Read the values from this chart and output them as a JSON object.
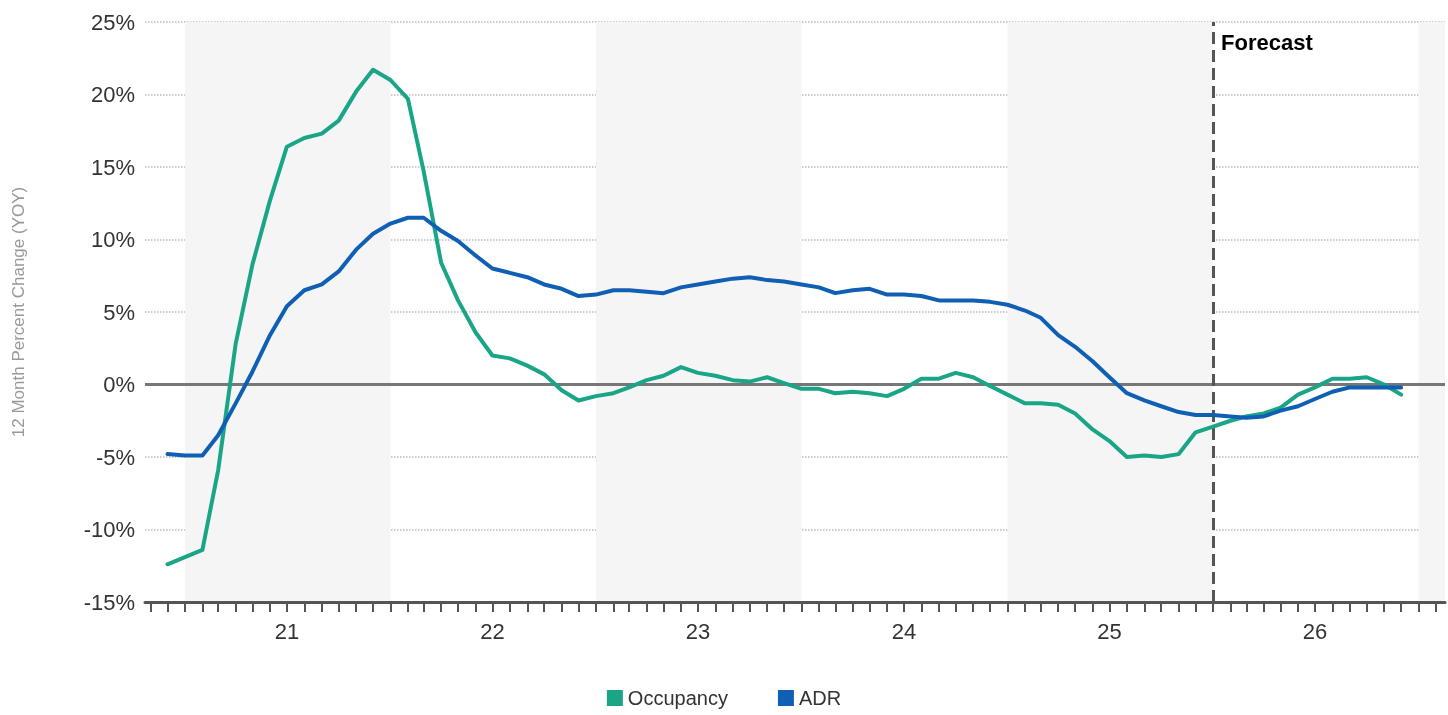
{
  "chart_data": {
    "type": "line",
    "ylabel": "12 Month Percent Change (YOY)",
    "x": [
      "2020-12",
      "2021-01",
      "2021-02",
      "2021-03",
      "2021-04",
      "2021-05",
      "2021-06",
      "2021-07",
      "2021-08",
      "2021-09",
      "2021-10",
      "2021-11",
      "2021-12",
      "2022-01",
      "2022-02",
      "2022-03",
      "2022-04",
      "2022-05",
      "2022-06",
      "2022-07",
      "2022-08",
      "2022-09",
      "2022-10",
      "2022-11",
      "2022-12",
      "2023-01",
      "2023-02",
      "2023-03",
      "2023-04",
      "2023-05",
      "2023-06",
      "2023-07",
      "2023-08",
      "2023-09",
      "2023-10",
      "2023-11",
      "2023-12",
      "2024-01",
      "2024-02",
      "2024-03",
      "2024-04",
      "2024-05",
      "2024-06",
      "2024-07",
      "2024-08",
      "2024-09",
      "2024-10",
      "2024-11",
      "2024-12",
      "2025-01",
      "2025-02",
      "2025-03",
      "2025-04",
      "2025-05",
      "2025-06",
      "2025-07",
      "2025-08",
      "2025-09",
      "2025-10",
      "2025-11",
      "2025-12",
      "2026-01",
      "2026-02",
      "2026-03",
      "2026-04",
      "2026-05",
      "2026-06",
      "2026-07",
      "2026-08",
      "2026-09",
      "2026-10",
      "2026-11",
      "2026-12"
    ],
    "series": [
      {
        "name": "Occupancy",
        "color": "#1aa587",
        "values": [
          -12.4,
          -11.9,
          -11.4,
          -5.9,
          2.8,
          8.3,
          12.7,
          16.4,
          17.0,
          17.3,
          18.2,
          20.2,
          21.7,
          21.0,
          19.7,
          14.7,
          8.4,
          5.8,
          3.6,
          2.0,
          1.8,
          1.3,
          0.7,
          -0.4,
          -1.1,
          -0.8,
          -0.6,
          -0.2,
          0.3,
          0.6,
          1.2,
          0.8,
          0.6,
          0.3,
          0.2,
          0.5,
          0.1,
          -0.3,
          -0.3,
          -0.6,
          -0.5,
          -0.6,
          -0.8,
          -0.3,
          0.4,
          0.4,
          0.8,
          0.5,
          -0.1,
          -0.7,
          -1.3,
          -1.3,
          -1.4,
          -2.0,
          -3.1,
          -3.9,
          -5.0,
          -4.9,
          -5.0,
          -4.8,
          -3.3,
          -2.9,
          -2.5,
          -2.2,
          -2.0,
          -1.6,
          -0.7,
          -0.2,
          0.4,
          0.4,
          0.5,
          0.0,
          -0.7
        ]
      },
      {
        "name": "ADR",
        "color": "#0f5fb5",
        "values": [
          -4.8,
          -4.9,
          -4.9,
          -3.5,
          -1.3,
          0.9,
          3.4,
          5.4,
          6.5,
          6.9,
          7.8,
          9.3,
          10.4,
          11.1,
          11.5,
          11.5,
          10.6,
          9.9,
          8.9,
          8.0,
          7.7,
          7.4,
          6.9,
          6.6,
          6.1,
          6.2,
          6.5,
          6.5,
          6.4,
          6.3,
          6.7,
          6.9,
          7.1,
          7.3,
          7.4,
          7.2,
          7.1,
          6.9,
          6.7,
          6.3,
          6.5,
          6.6,
          6.2,
          6.2,
          6.1,
          5.8,
          5.8,
          5.8,
          5.7,
          5.5,
          5.1,
          4.6,
          3.4,
          2.6,
          1.6,
          0.5,
          -0.6,
          -1.1,
          -1.5,
          -1.9,
          -2.1,
          -2.1,
          -2.2,
          -2.3,
          -2.2,
          -1.8,
          -1.5,
          -1.0,
          -0.5,
          -0.2,
          -0.2,
          -0.2,
          -0.2
        ]
      }
    ],
    "xlim": [
      "2020-10-22",
      "2027-02-17"
    ],
    "xticks": [
      {
        "value": "2020-11",
        "label": null
      },
      {
        "value": "2020-12",
        "label": null
      },
      {
        "value": "2021-01",
        "label": null
      },
      {
        "value": "2021-02",
        "label": null
      },
      {
        "value": "2021-03",
        "label": null
      },
      {
        "value": "2021-04",
        "label": null
      },
      {
        "value": "2021-05",
        "label": null
      },
      {
        "value": "2021-06",
        "label": null
      },
      {
        "value": "2021-07",
        "label": "21"
      },
      {
        "value": "2021-08",
        "label": null
      },
      {
        "value": "2021-09",
        "label": null
      },
      {
        "value": "2021-10",
        "label": null
      },
      {
        "value": "2021-11",
        "label": null
      },
      {
        "value": "2021-12",
        "label": null
      },
      {
        "value": "2022-01",
        "label": null
      },
      {
        "value": "2022-02",
        "label": null
      },
      {
        "value": "2022-03",
        "label": null
      },
      {
        "value": "2022-04",
        "label": null
      },
      {
        "value": "2022-05",
        "label": null
      },
      {
        "value": "2022-06",
        "label": null
      },
      {
        "value": "2022-07",
        "label": "22"
      },
      {
        "value": "2022-08",
        "label": null
      },
      {
        "value": "2022-09",
        "label": null
      },
      {
        "value": "2022-10",
        "label": null
      },
      {
        "value": "2022-11",
        "label": null
      },
      {
        "value": "2022-12",
        "label": null
      },
      {
        "value": "2023-01",
        "label": null
      },
      {
        "value": "2023-02",
        "label": null
      },
      {
        "value": "2023-03",
        "label": null
      },
      {
        "value": "2023-04",
        "label": null
      },
      {
        "value": "2023-05",
        "label": null
      },
      {
        "value": "2023-06",
        "label": null
      },
      {
        "value": "2023-07",
        "label": "23"
      },
      {
        "value": "2023-08",
        "label": null
      },
      {
        "value": "2023-09",
        "label": null
      },
      {
        "value": "2023-10",
        "label": null
      },
      {
        "value": "2023-11",
        "label": null
      },
      {
        "value": "2023-12",
        "label": null
      },
      {
        "value": "2024-01",
        "label": null
      },
      {
        "value": "2024-02",
        "label": null
      },
      {
        "value": "2024-03",
        "label": null
      },
      {
        "value": "2024-04",
        "label": null
      },
      {
        "value": "2024-05",
        "label": null
      },
      {
        "value": "2024-06",
        "label": null
      },
      {
        "value": "2024-07",
        "label": "24"
      },
      {
        "value": "2024-08",
        "label": null
      },
      {
        "value": "2024-09",
        "label": null
      },
      {
        "value": "2024-10",
        "label": null
      },
      {
        "value": "2024-11",
        "label": null
      },
      {
        "value": "2024-12",
        "label": null
      },
      {
        "value": "2025-01",
        "label": null
      },
      {
        "value": "2025-02",
        "label": null
      },
      {
        "value": "2025-03",
        "label": null
      },
      {
        "value": "2025-04",
        "label": null
      },
      {
        "value": "2025-05",
        "label": null
      },
      {
        "value": "2025-06",
        "label": null
      },
      {
        "value": "2025-07",
        "label": "25"
      },
      {
        "value": "2025-08",
        "label": null
      },
      {
        "value": "2025-09",
        "label": null
      },
      {
        "value": "2025-10",
        "label": null
      },
      {
        "value": "2025-11",
        "label": null
      },
      {
        "value": "2025-12",
        "label": null
      },
      {
        "value": "2026-01",
        "label": null
      },
      {
        "value": "2026-02",
        "label": null
      },
      {
        "value": "2026-03",
        "label": null
      },
      {
        "value": "2026-04",
        "label": null
      },
      {
        "value": "2026-05",
        "label": null
      },
      {
        "value": "2026-06",
        "label": null
      },
      {
        "value": "2026-07",
        "label": "26"
      },
      {
        "value": "2026-08",
        "label": null
      },
      {
        "value": "2026-09",
        "label": null
      },
      {
        "value": "2026-10",
        "label": null
      },
      {
        "value": "2026-11",
        "label": null
      },
      {
        "value": "2026-12",
        "label": null
      },
      {
        "value": "2027-01",
        "label": null
      },
      {
        "value": "2027-02",
        "label": null
      }
    ],
    "ylim": [
      -15,
      25
    ],
    "yticks": [
      {
        "value": -15,
        "label": "-15%"
      },
      {
        "value": -10,
        "label": "-10%"
      },
      {
        "value": -5,
        "label": "-5%"
      },
      {
        "value": 0,
        "label": "0%"
      },
      {
        "value": 5,
        "label": "5%"
      },
      {
        "value": 10,
        "label": "10%"
      },
      {
        "value": 15,
        "label": "15%"
      },
      {
        "value": 20,
        "label": "20%"
      },
      {
        "value": 25,
        "label": "25%"
      }
    ],
    "grid": "y",
    "legend": "bottom",
    "marker": "none",
    "line_style": "solid",
    "ref_lines": [
      {
        "axis": "y",
        "value": 0,
        "label": null,
        "color": "#777777",
        "line_style": "solid"
      },
      {
        "axis": "x",
        "value": "2026-01",
        "label": "Forecast",
        "color": "#555555",
        "line_style": "dashed"
      }
    ],
    "bands": [
      {
        "axis": "x",
        "from": "2021-01",
        "to": "2022-01",
        "label": null,
        "color": "#f5f5f5"
      },
      {
        "axis": "x",
        "from": "2023-01",
        "to": "2024-01",
        "label": null,
        "color": "#f5f5f5"
      },
      {
        "axis": "x",
        "from": "2025-01",
        "to": "2026-01",
        "label": null,
        "color": "#f5f5f5"
      },
      {
        "axis": "x",
        "from": "2027-01",
        "to": "2027-02-17",
        "label": null,
        "color": "#f5f5f5"
      }
    ]
  }
}
